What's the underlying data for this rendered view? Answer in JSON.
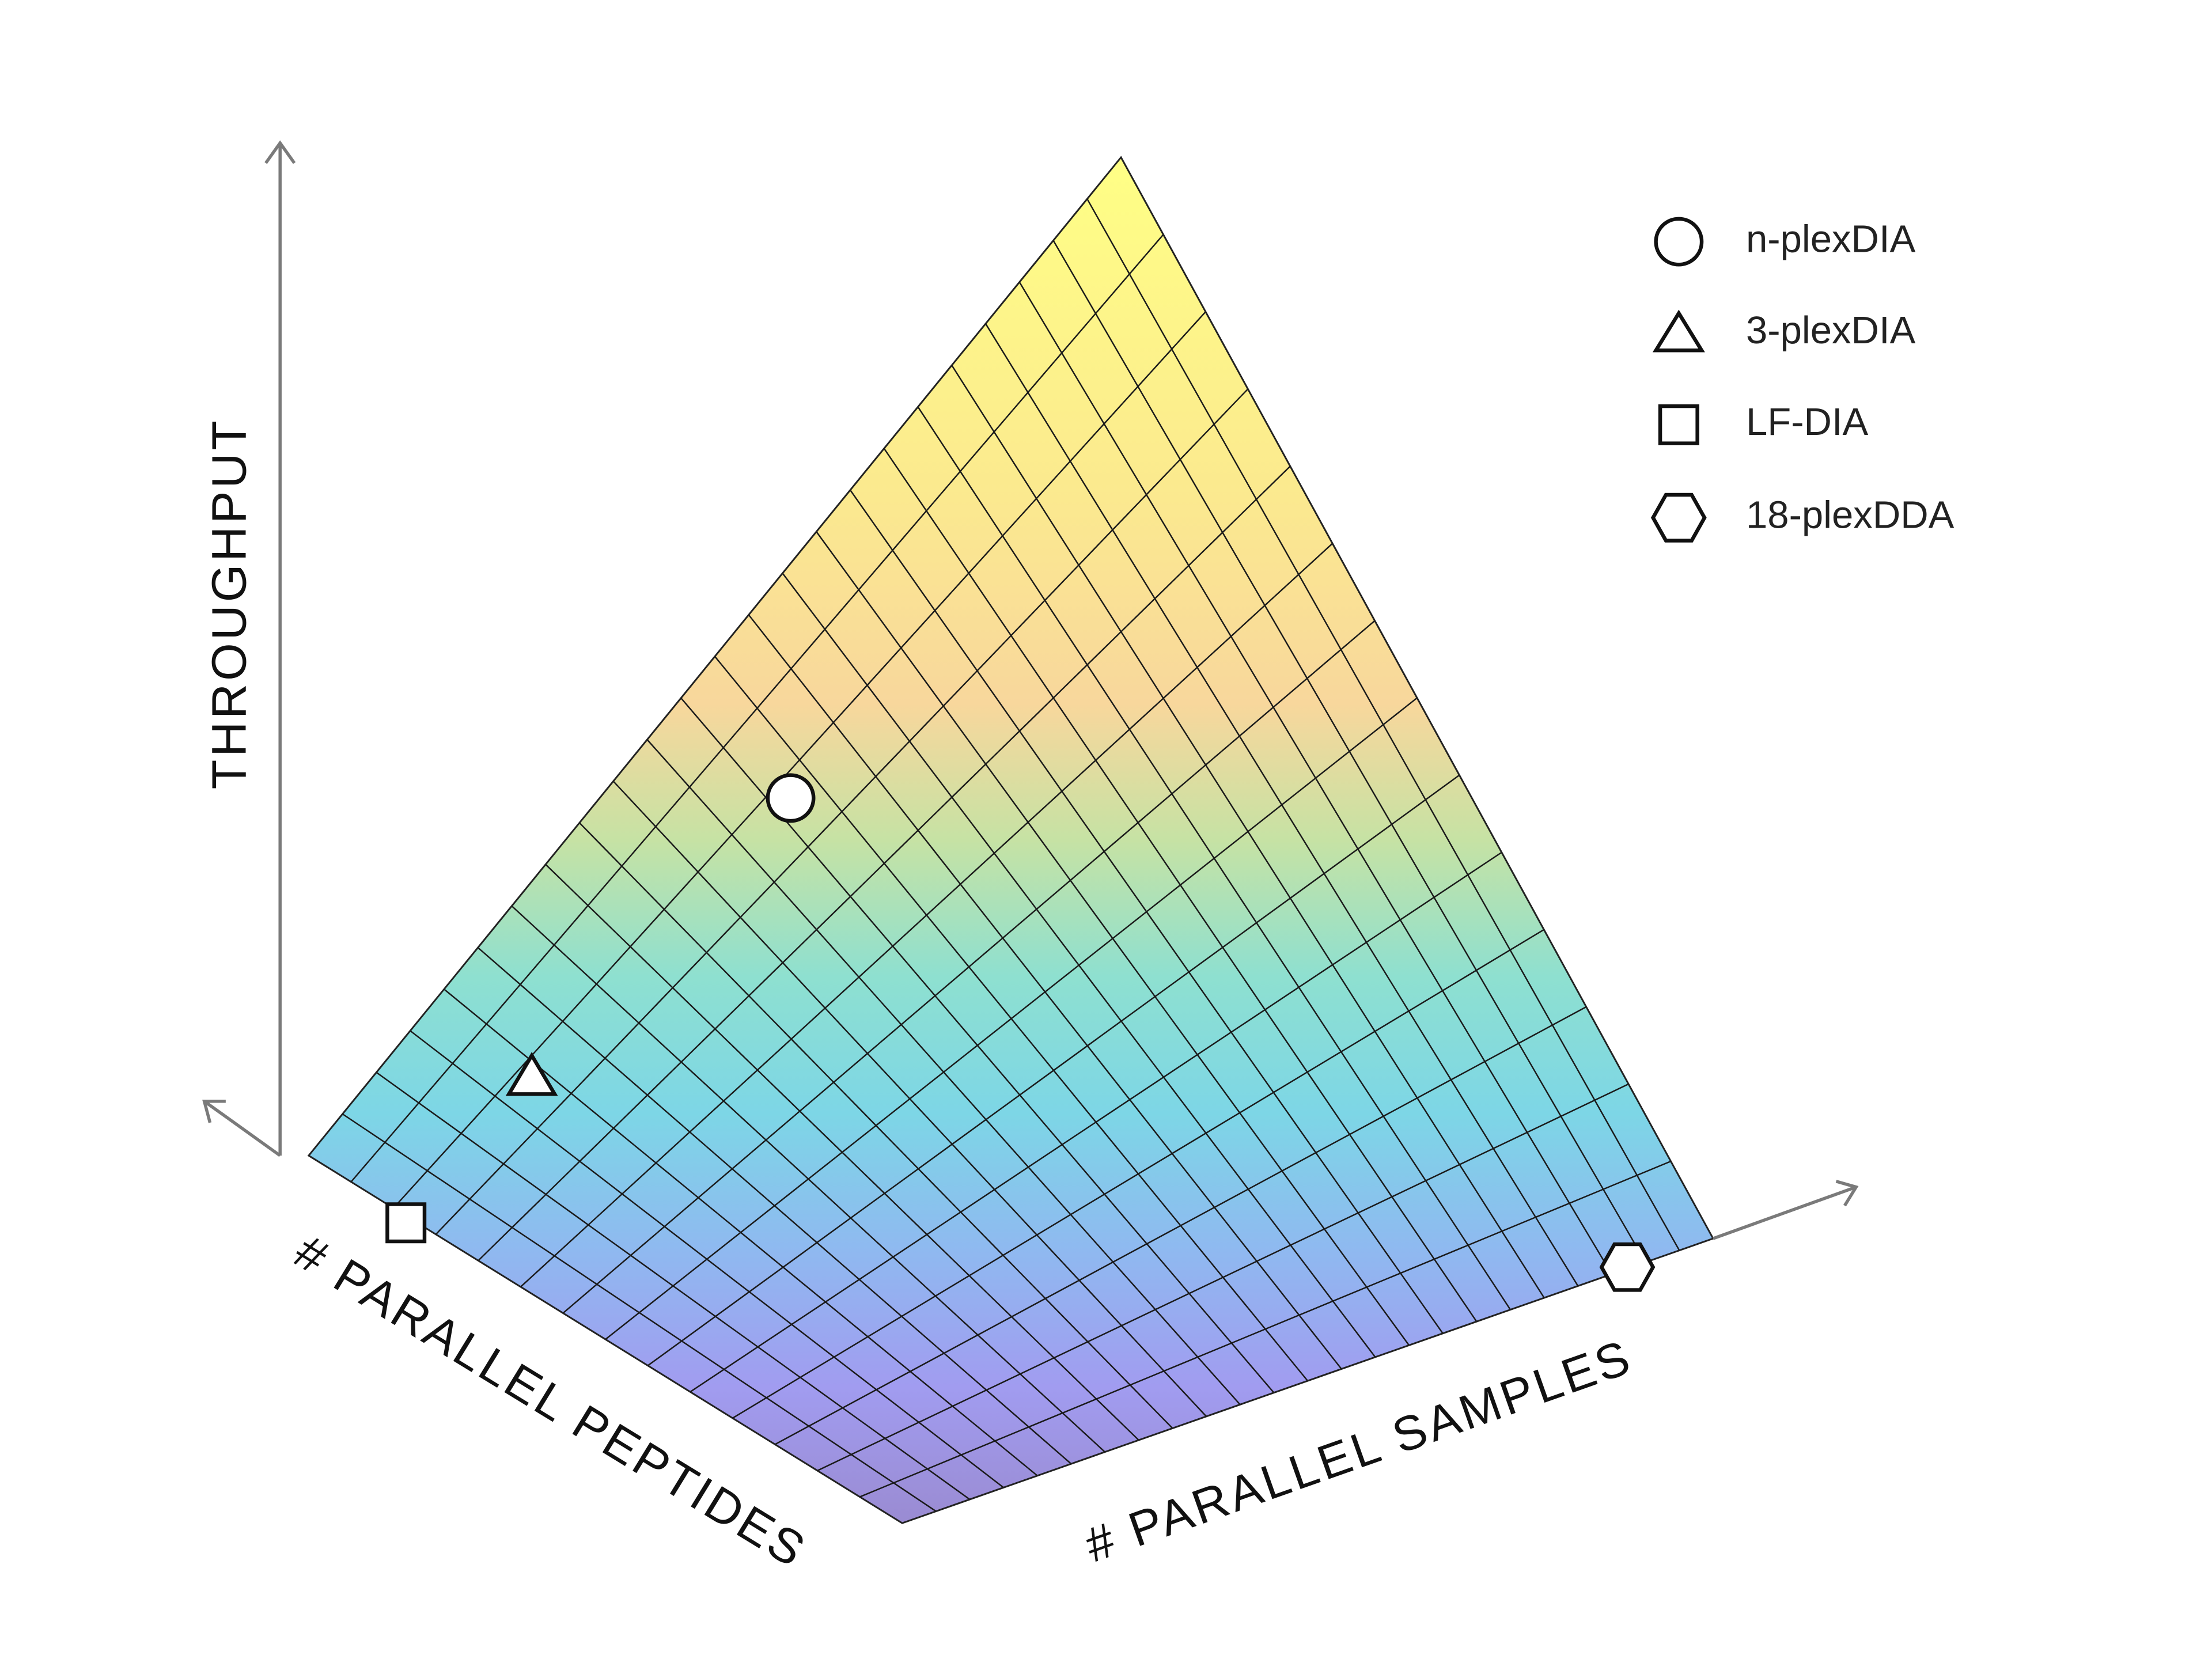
{
  "axes": {
    "vertical": "THROUGHPUT",
    "left": "# PARALLEL PEPTIDES",
    "right": "# PARALLEL SAMPLES"
  },
  "legend": [
    "n-plexDIA",
    "3-plexDIA",
    "LF-DIA",
    "18-plexDDA"
  ]
}
